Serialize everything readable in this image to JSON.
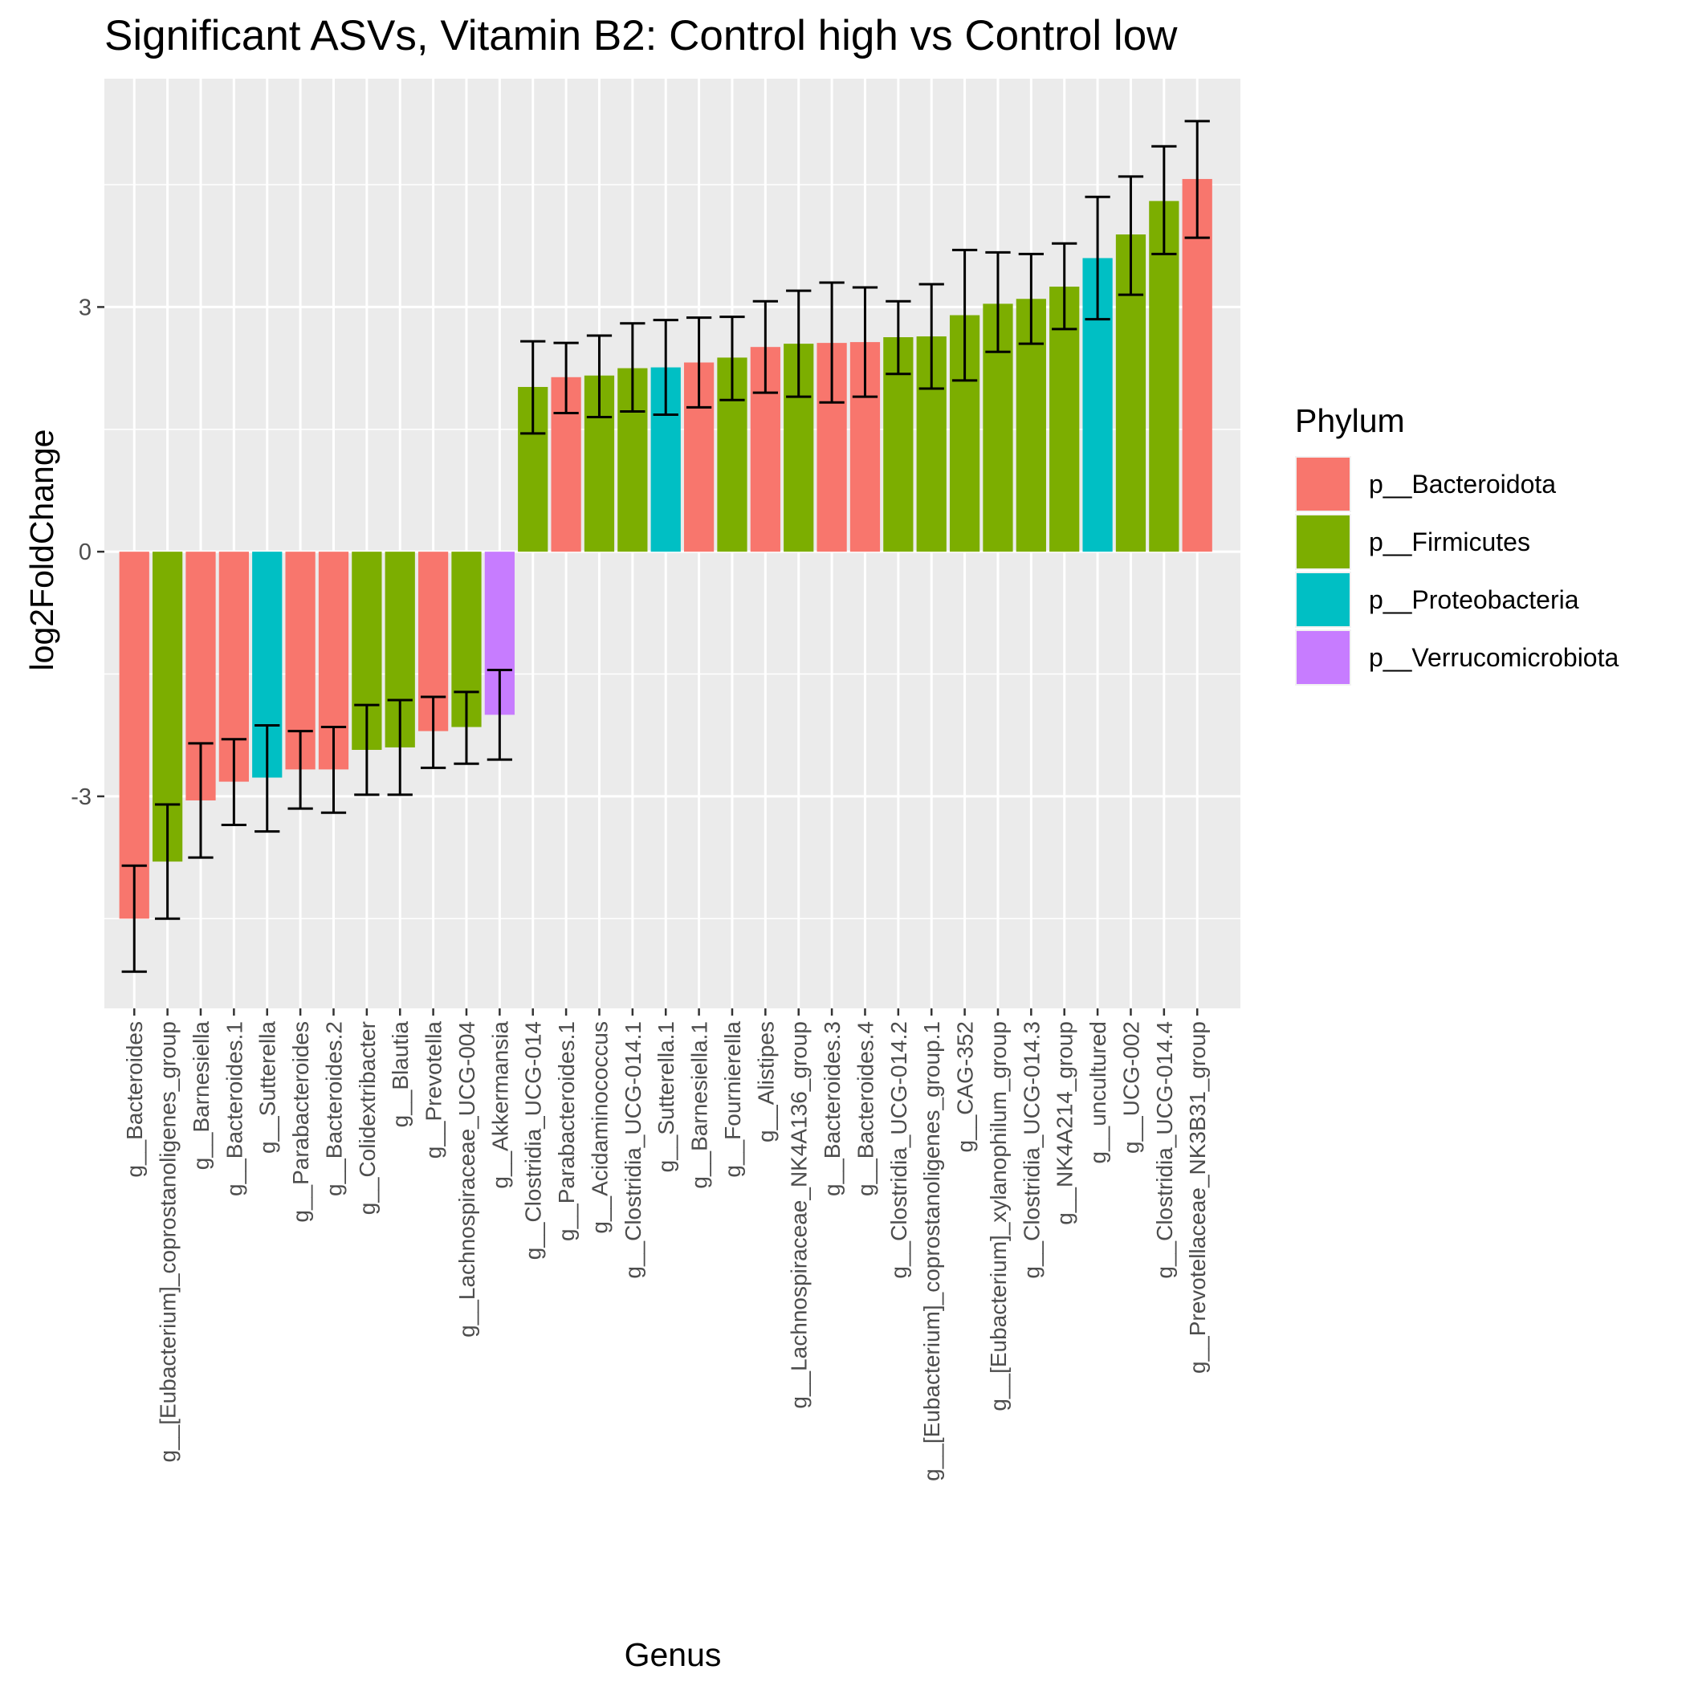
{
  "chart_data": {
    "type": "bar",
    "title": "Significant ASVs, Vitamin B2: Control high vs Control low",
    "xlabel": "Genus",
    "ylabel": "log2FoldChange",
    "ylim": [
      -5.6,
      5.8
    ],
    "yticks": [
      -3,
      0,
      3
    ],
    "ytick_labels": [
      "-3",
      "0",
      "3"
    ],
    "grid": true,
    "legend": {
      "title": "Phylum",
      "position": "right",
      "entries": [
        {
          "name": "p__Bacteroidota",
          "color": "#F8766D"
        },
        {
          "name": "p__Firmicutes",
          "color": "#7CAE00"
        },
        {
          "name": "p__Proteobacteria",
          "color": "#00BFC4"
        },
        {
          "name": "p__Verrucomicrobiota",
          "color": "#C77CFF"
        }
      ]
    },
    "categories": [
      "g__Bacteroides",
      "g__[Eubacterium]_coprostanoligenes_group",
      "g__Barnesiella",
      "g__Bacteroides.1",
      "g__Sutterella",
      "g__Parabacteroides",
      "g__Bacteroides.2",
      "g__Colidextribacter",
      "g__Blautia",
      "g__Prevotella",
      "g__Lachnospiraceae_UCG-004",
      "g__Akkermansia",
      "g__Clostridia_UCG-014",
      "g__Parabacteroides.1",
      "g__Acidaminococcus",
      "g__Clostridia_UCG-014.1",
      "g__Sutterella.1",
      "g__Barnesiella.1",
      "g__Fournierella",
      "g__Alistipes",
      "g__Lachnospiraceae_NK4A136_group",
      "g__Bacteroides.3",
      "g__Bacteroides.4",
      "g__Clostridia_UCG-014.2",
      "g__[Eubacterium]_coprostanoligenes_group.1",
      "g__CAG-352",
      "g__[Eubacterium]_xylanophilum_group",
      "g__Clostridia_UCG-014.3",
      "g__NK4A214_group",
      "g__uncultured",
      "g__UCG-002",
      "g__Clostridia_UCG-014.4",
      "g__Prevotellaceae_NK3B31_group"
    ],
    "values": [
      -4.5,
      -3.8,
      -3.05,
      -2.82,
      -2.77,
      -2.67,
      -2.67,
      -2.43,
      -2.4,
      -2.2,
      -2.15,
      -2.0,
      2.02,
      2.14,
      2.16,
      2.25,
      2.26,
      2.32,
      2.38,
      2.51,
      2.55,
      2.56,
      2.57,
      2.63,
      2.64,
      2.9,
      3.04,
      3.1,
      3.25,
      3.6,
      3.89,
      4.3,
      4.57
    ],
    "error_low": [
      -5.15,
      -4.5,
      -3.75,
      -3.35,
      -3.43,
      -3.15,
      -3.2,
      -2.98,
      -2.98,
      -2.65,
      -2.6,
      -2.55,
      1.45,
      1.7,
      1.65,
      1.72,
      1.68,
      1.77,
      1.86,
      1.95,
      1.9,
      1.83,
      1.9,
      2.18,
      2.0,
      2.1,
      2.45,
      2.55,
      2.73,
      2.85,
      3.15,
      3.65,
      3.85
    ],
    "error_high": [
      -3.85,
      -3.1,
      -2.35,
      -2.3,
      -2.13,
      -2.2,
      -2.15,
      -1.88,
      -1.82,
      -1.78,
      -1.72,
      -1.45,
      2.58,
      2.56,
      2.65,
      2.8,
      2.84,
      2.87,
      2.88,
      3.07,
      3.2,
      3.3,
      3.24,
      3.07,
      3.28,
      3.7,
      3.67,
      3.65,
      3.78,
      4.35,
      4.6,
      4.97,
      5.28
    ],
    "phylum": [
      "p__Bacteroidota",
      "p__Firmicutes",
      "p__Bacteroidota",
      "p__Bacteroidota",
      "p__Proteobacteria",
      "p__Bacteroidota",
      "p__Bacteroidota",
      "p__Firmicutes",
      "p__Firmicutes",
      "p__Bacteroidota",
      "p__Firmicutes",
      "p__Verrucomicrobiota",
      "p__Firmicutes",
      "p__Bacteroidota",
      "p__Firmicutes",
      "p__Firmicutes",
      "p__Proteobacteria",
      "p__Bacteroidota",
      "p__Firmicutes",
      "p__Bacteroidota",
      "p__Firmicutes",
      "p__Bacteroidota",
      "p__Bacteroidota",
      "p__Firmicutes",
      "p__Firmicutes",
      "p__Firmicutes",
      "p__Firmicutes",
      "p__Firmicutes",
      "p__Firmicutes",
      "p__Proteobacteria",
      "p__Firmicutes",
      "p__Firmicutes",
      "p__Bacteroidota"
    ],
    "colors": {
      "panel_background": "#EBEBEB",
      "grid": "#FFFFFF",
      "error_bar": "#000000",
      "tick_text": "#4D4D4D"
    }
  }
}
